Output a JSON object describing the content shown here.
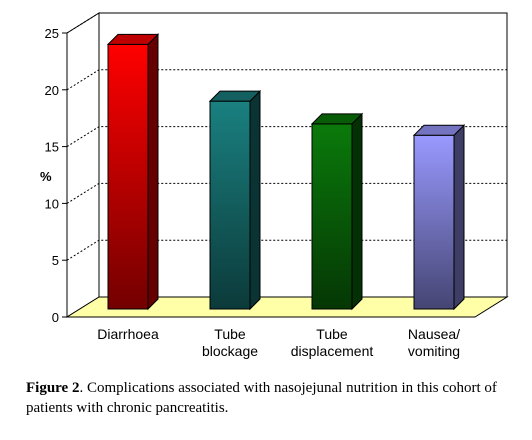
{
  "chart_data": {
    "type": "bar",
    "categories": [
      "Diarrhoea",
      "Tube\nblockage",
      "Tube\ndisplacement",
      "Nausea/\nvomiting"
    ],
    "values": [
      24,
      19,
      17,
      16
    ],
    "ylabel": "%",
    "xlabel": "",
    "ylim": [
      0,
      25
    ],
    "yticks": [
      0,
      5,
      10,
      15,
      20,
      25
    ],
    "grid": true,
    "style": "3d",
    "colors": [
      "#ff0000",
      "#1a8080",
      "#0a7a0a",
      "#9999ff"
    ],
    "floor_color": "#ffffa8"
  },
  "caption": {
    "label": "Figure 2",
    "text": ". Complications associated with nasojejunal nutrition in this cohort of patients with chronic pancreatitis."
  }
}
